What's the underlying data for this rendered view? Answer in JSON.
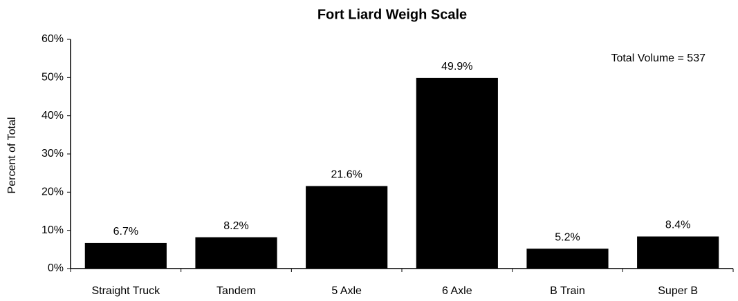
{
  "chart_data": {
    "type": "bar",
    "title": "Fort Liard Weigh Scale",
    "y_label": "Percent of Total",
    "annotation": "Total Volume = 537",
    "categories": [
      "Straight Truck",
      "Tandem",
      "5 Axle",
      "6 Axle",
      "B Train",
      "Super B"
    ],
    "values": [
      6.7,
      8.2,
      21.6,
      49.9,
      5.2,
      8.4
    ],
    "value_labels": [
      "6.7%",
      "8.2%",
      "21.6%",
      "49.9%",
      "5.2%",
      "8.4%"
    ],
    "color": "#000000",
    "ylim": [
      0,
      60
    ],
    "yticks": [
      {
        "value": 0,
        "label": "0%"
      },
      {
        "value": 10,
        "label": "10%"
      },
      {
        "value": 20,
        "label": "20%"
      },
      {
        "value": 30,
        "label": "30%"
      },
      {
        "value": 40,
        "label": "40%"
      },
      {
        "value": 50,
        "label": "50%"
      },
      {
        "value": 60,
        "label": "60%"
      }
    ],
    "grid": false
  }
}
